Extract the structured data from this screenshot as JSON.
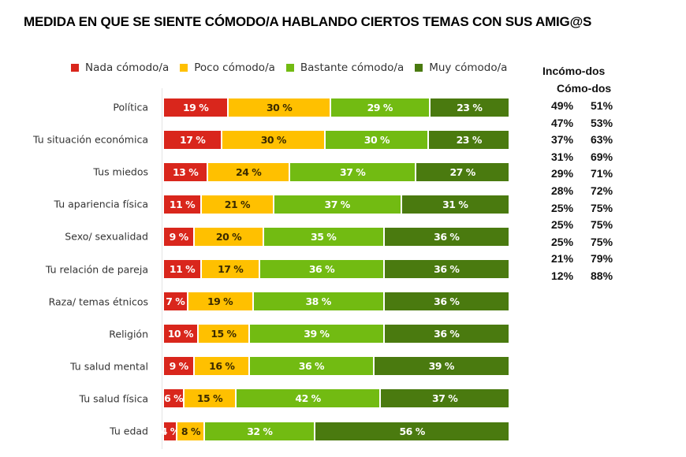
{
  "chart_data": {
    "type": "bar",
    "orientation": "horizontal",
    "stacked": true,
    "title": "MEDIDA EN QUE SE SIENTE CÓMODO/A HABLANDO CIERTOS TEMAS CON SUS AMIG@S",
    "xlabel": "",
    "ylabel": "",
    "xlim": [
      0,
      100
    ],
    "unit": "%",
    "legend_position": "top",
    "categories": [
      "Política",
      "Tu situación económica",
      "Tus miedos",
      "Tu apariencia física",
      "Sexo/ sexualidad",
      "Tu relación de pareja",
      "Raza/ temas étnicos",
      "Religión",
      "Tu salud mental",
      "Tu salud física",
      "Tu edad"
    ],
    "series": [
      {
        "name": "Nada cómodo/a",
        "color": "#d9261c",
        "text_color": "#ffffff",
        "values": [
          19,
          17,
          13,
          11,
          9,
          11,
          7,
          10,
          9,
          6,
          4
        ]
      },
      {
        "name": "Poco cómodo/a",
        "color": "#ffc000",
        "text_color": "#3a2a00",
        "values": [
          30,
          30,
          24,
          21,
          20,
          17,
          19,
          15,
          16,
          15,
          8
        ]
      },
      {
        "name": "Bastante cómodo/a",
        "color": "#72bb12",
        "text_color": "#ffffff",
        "values": [
          29,
          30,
          37,
          37,
          35,
          36,
          38,
          39,
          36,
          42,
          32
        ]
      },
      {
        "name": "Muy cómodo/a",
        "color": "#4a7a0f",
        "text_color": "#ffffff",
        "values": [
          23,
          23,
          27,
          31,
          36,
          36,
          36,
          36,
          39,
          37,
          56
        ]
      }
    ],
    "data_labels": [
      [
        "19 %",
        "30 %",
        "29 %",
        "23 %"
      ],
      [
        "17 %",
        "30 %",
        "30 %",
        "23 %"
      ],
      [
        "13 %",
        "24 %",
        "37 %",
        "27 %"
      ],
      [
        "11 %",
        "21 %",
        "37 %",
        "31 %"
      ],
      [
        "9 %",
        "20 %",
        "35 %",
        "36 %"
      ],
      [
        "11 %",
        "17 %",
        "36 %",
        "36 %"
      ],
      [
        "7 %",
        "19 %",
        "38 %",
        "36 %"
      ],
      [
        "10 %",
        "15 %",
        "39 %",
        "36 %"
      ],
      [
        "9 %",
        "16 %",
        "36 %",
        "39 %"
      ],
      [
        "6 %",
        "15 %",
        "42 %",
        "37 %"
      ],
      [
        "4 %",
        "8 %",
        "32 %",
        "56 %"
      ]
    ],
    "summary_table": {
      "header_1": "Incómo-dos",
      "header_2": "Cómo-dos",
      "rows": [
        [
          "49%",
          "51%"
        ],
        [
          "47%",
          "53%"
        ],
        [
          "37%",
          "63%"
        ],
        [
          "31%",
          "69%"
        ],
        [
          "29%",
          "71%"
        ],
        [
          "28%",
          "72%"
        ],
        [
          "25%",
          "75%"
        ],
        [
          "25%",
          "75%"
        ],
        [
          "25%",
          "75%"
        ],
        [
          "21%",
          "79%"
        ],
        [
          "12%",
          "88%"
        ]
      ]
    }
  }
}
